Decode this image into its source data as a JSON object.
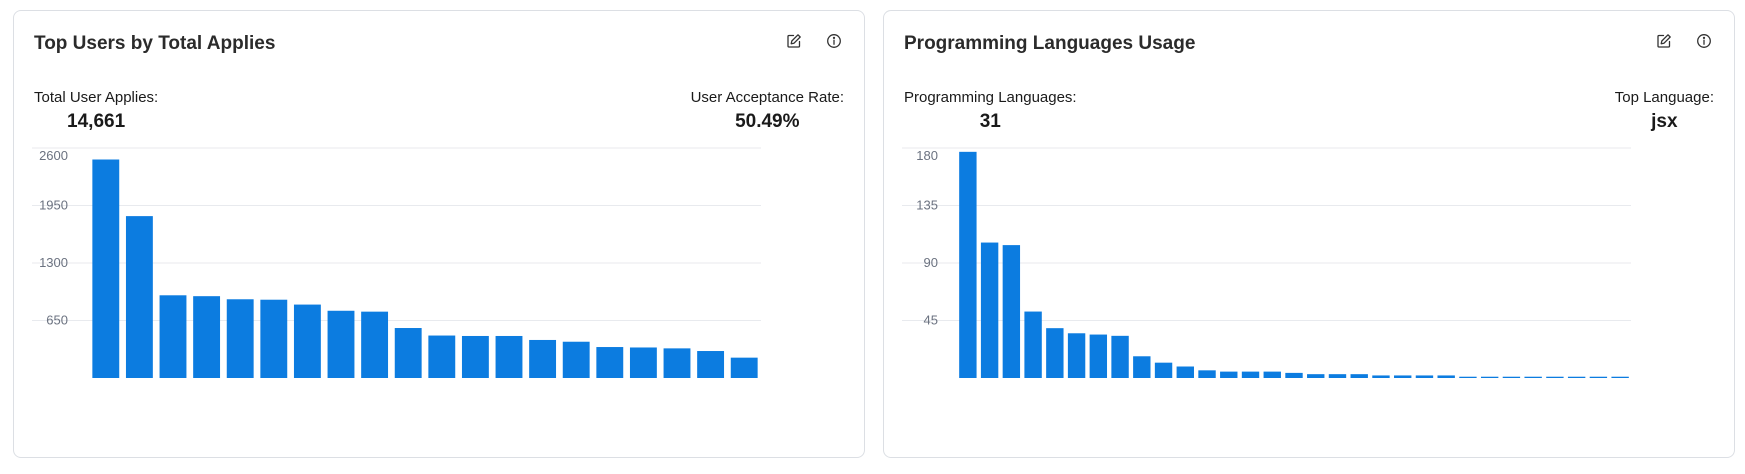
{
  "colors": {
    "bar": "#0c7ce0",
    "grid": "#e8eaee",
    "tick": "#6b7280",
    "card_border": "#dcdfe4"
  },
  "icons": {
    "edit": "edit-icon",
    "info": "info-icon"
  },
  "cards": [
    {
      "title": "Top Users by Total Applies",
      "stats": [
        {
          "label": "Total User Applies:",
          "value": "14,661"
        },
        {
          "label": "User Acceptance Rate:",
          "value": "50.49%"
        }
      ]
    },
    {
      "title": "Programming Languages Usage",
      "stats": [
        {
          "label": "Programming Languages:",
          "value": "31"
        },
        {
          "label": "Top Language:",
          "value": "jsx"
        }
      ]
    }
  ],
  "chart_data": [
    {
      "type": "bar",
      "ylim": [
        0,
        2600
      ],
      "yticks": [
        650,
        1300,
        1950,
        2600
      ],
      "grid": true,
      "values": [
        2470,
        1830,
        935,
        925,
        890,
        885,
        830,
        760,
        750,
        565,
        480,
        475,
        475,
        430,
        410,
        350,
        345,
        335,
        305,
        230
      ]
    },
    {
      "type": "bar",
      "ylim": [
        0,
        180
      ],
      "yticks": [
        45,
        90,
        135,
        180
      ],
      "grid": true,
      "values": [
        177,
        106,
        104,
        52,
        39,
        35,
        34,
        33,
        17,
        12,
        9,
        6,
        5,
        5,
        5,
        4,
        3,
        3,
        3,
        2,
        2,
        2,
        2,
        1,
        1,
        1,
        1,
        1,
        1,
        1,
        1
      ]
    }
  ]
}
